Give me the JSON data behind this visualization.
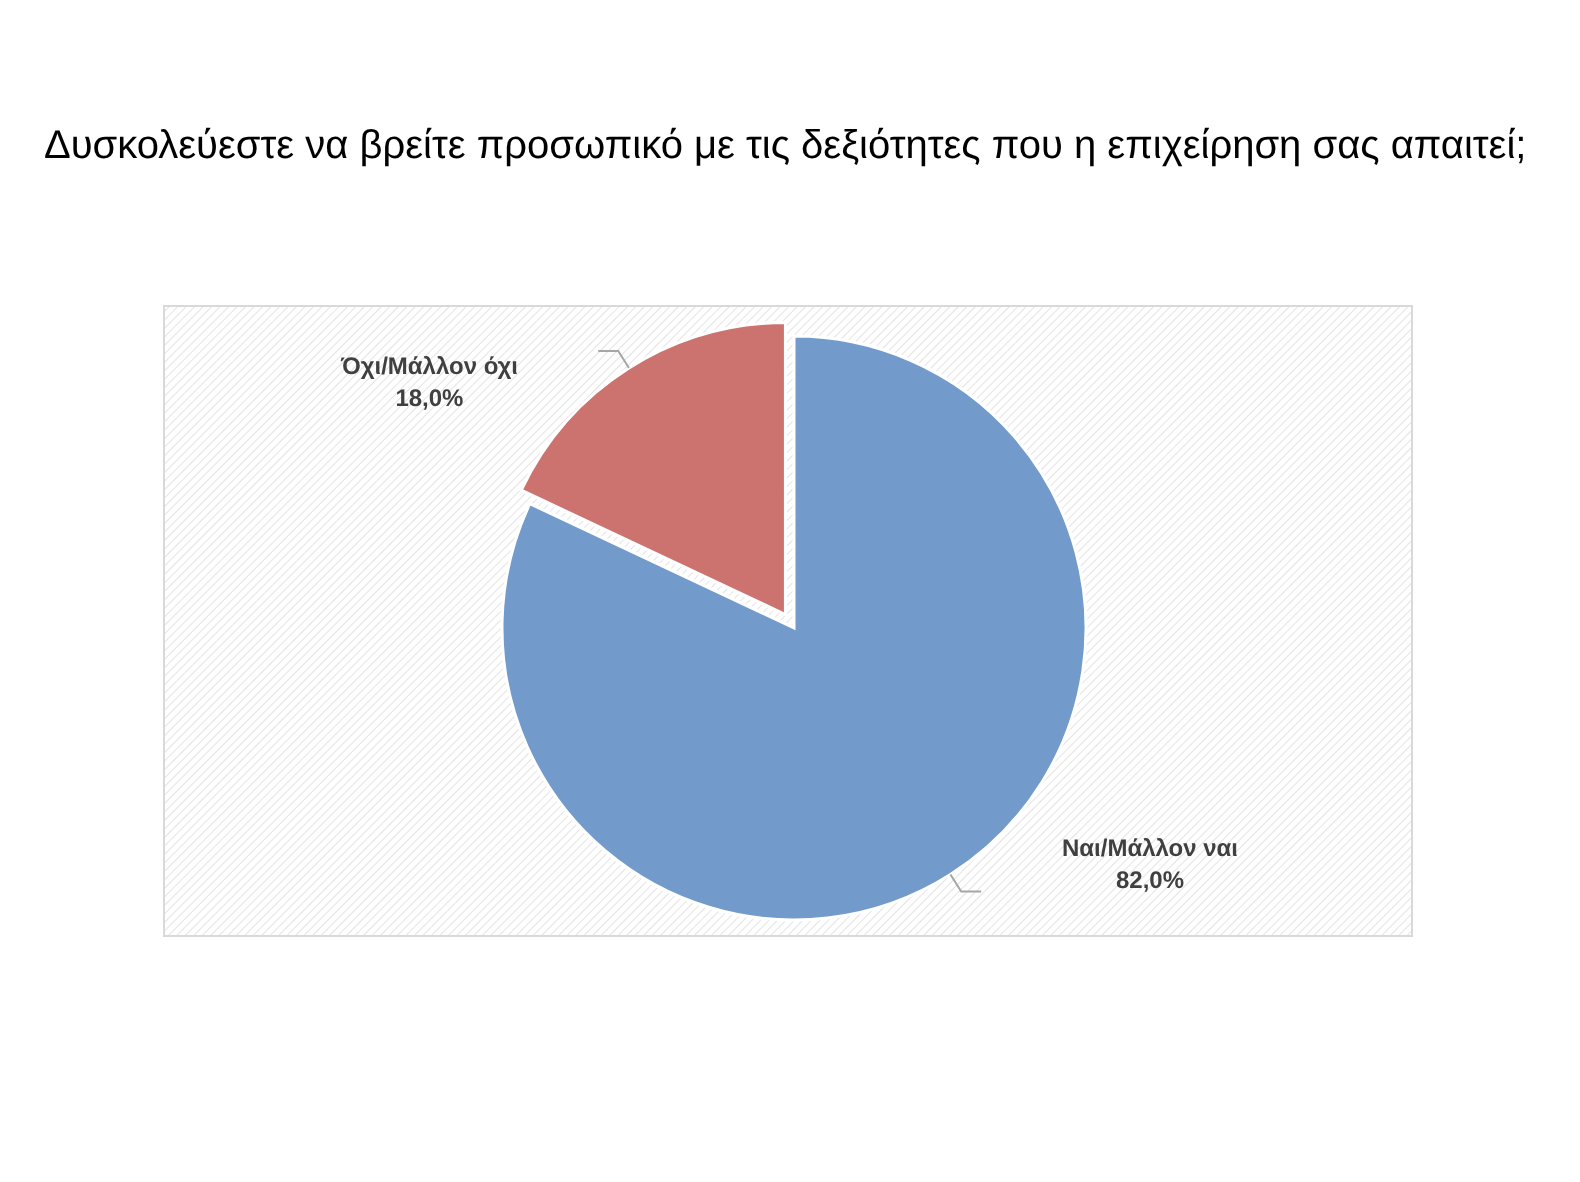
{
  "chart_data": {
    "type": "pie",
    "title": "Δυσκολεύεστε να βρείτε προσωπικό με τις δεξιότητες που η επιχείρηση σας απαιτεί;",
    "categories": [
      "Ναι/Μάλλον ναι",
      "Όχι/Μάλλον όχι"
    ],
    "values": [
      82.0,
      18.0
    ],
    "colors": [
      "#729aca",
      "#cc7370"
    ],
    "value_labels": [
      "82,0%",
      "18,0%"
    ]
  }
}
